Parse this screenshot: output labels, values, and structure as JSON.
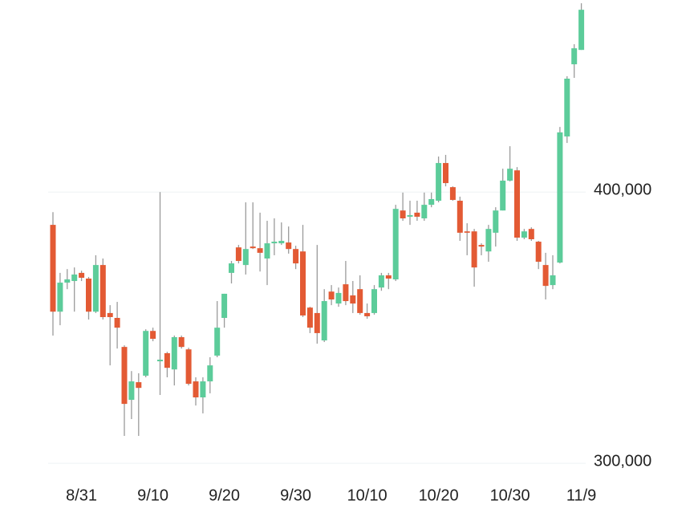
{
  "chart_data": {
    "type": "candlestick",
    "categories": [
      null,
      null,
      null,
      null,
      "8/31",
      null,
      null,
      null,
      null,
      null,
      null,
      null,
      null,
      null,
      "9/10",
      null,
      null,
      null,
      null,
      null,
      null,
      null,
      null,
      null,
      "9/20",
      null,
      null,
      null,
      null,
      null,
      null,
      null,
      null,
      null,
      "9/30",
      null,
      null,
      null,
      null,
      null,
      null,
      null,
      null,
      null,
      "10/10",
      null,
      null,
      null,
      null,
      null,
      null,
      null,
      null,
      null,
      "10/20",
      null,
      null,
      null,
      null,
      null,
      null,
      null,
      null,
      null,
      "10/30",
      null,
      null,
      null,
      null,
      null,
      null,
      null,
      null,
      null,
      "11/9"
    ],
    "open": [
      387900,
      355900,
      366600,
      367200,
      370200,
      368100,
      355900,
      373100,
      355400,
      353600,
      342900,
      323400,
      329900,
      332300,
      348800,
      337600,
      340600,
      334600,
      346500,
      342000,
      330200,
      324300,
      330200,
      339700,
      353600,
      370200,
      379600,
      373100,
      379900,
      379300,
      375500,
      381100,
      381100,
      381400,
      379000,
      378100,
      357400,
      355400,
      345300,
      363300,
      358900,
      366000,
      361900,
      364200,
      355400,
      355400,
      364800,
      369300,
      367800,
      393200,
      390900,
      392400,
      390300,
      395300,
      396800,
      410700,
      401800,
      396800,
      385500,
      385500,
      380500,
      378100,
      385000,
      393200,
      404200,
      408000,
      383200,
      386400,
      381700,
      373100,
      365700,
      374000,
      420500,
      447100,
      452400
    ],
    "high": [
      392600,
      370200,
      371600,
      372200,
      371000,
      368700,
      376700,
      375500,
      358300,
      359500,
      343500,
      334000,
      333200,
      349400,
      350000,
      400000,
      341100,
      347100,
      347100,
      342600,
      331700,
      331700,
      339100,
      359800,
      362500,
      374600,
      380500,
      396200,
      396200,
      392400,
      389400,
      390300,
      388800,
      387300,
      380200,
      387900,
      357700,
      380500,
      364200,
      365700,
      364800,
      374600,
      367200,
      369300,
      358900,
      365700,
      370200,
      370200,
      395300,
      399800,
      396800,
      396800,
      399800,
      399800,
      413100,
      413700,
      402100,
      398300,
      388500,
      386400,
      381100,
      387900,
      394400,
      408600,
      416900,
      409200,
      386400,
      387000,
      382000,
      377600,
      376700,
      424000,
      442700,
      454500,
      469600
    ],
    "low": [
      347100,
      350900,
      364200,
      355900,
      367200,
      353000,
      355400,
      353000,
      336100,
      342300,
      310100,
      316300,
      310100,
      331700,
      345000,
      325200,
      331700,
      328700,
      342300,
      328700,
      321300,
      318400,
      325800,
      339100,
      350000,
      366300,
      373700,
      369600,
      379000,
      370700,
      365700,
      376700,
      380500,
      377300,
      371600,
      353900,
      348000,
      344100,
      344700,
      358300,
      357700,
      358300,
      355400,
      354800,
      353300,
      354800,
      363600,
      364200,
      367200,
      389400,
      387900,
      389400,
      389400,
      394400,
      396200,
      402100,
      396800,
      382000,
      376700,
      365100,
      376700,
      374300,
      379900,
      393200,
      403900,
      382000,
      382600,
      382000,
      371600,
      360400,
      364200,
      373700,
      418100,
      442100,
      452400
    ],
    "close": [
      355900,
      366600,
      367800,
      369600,
      368400,
      355900,
      373100,
      353900,
      353900,
      350000,
      321900,
      330200,
      327800,
      348800,
      345900,
      338200,
      335200,
      346500,
      342900,
      329300,
      324300,
      330200,
      336100,
      350000,
      362500,
      373700,
      374600,
      379000,
      379300,
      377600,
      381100,
      381700,
      382000,
      379000,
      373700,
      354500,
      350000,
      348000,
      359800,
      360400,
      362800,
      359800,
      358900,
      355400,
      354200,
      364200,
      369300,
      368100,
      393800,
      390300,
      391500,
      390900,
      395300,
      397400,
      410700,
      403300,
      397100,
      385000,
      385000,
      372200,
      379900,
      386400,
      393200,
      404200,
      408600,
      383200,
      385500,
      382600,
      374300,
      365400,
      369300,
      422000,
      441800,
      453000,
      467200
    ],
    "up_color": "#5ccc9a",
    "down_color": "#e35a34",
    "ylim": [
      280200,
      470800
    ],
    "yticks": [
      {
        "value": 300000,
        "label": "300,000"
      },
      {
        "value": 400000,
        "label": "400,000"
      }
    ],
    "grid": true
  }
}
